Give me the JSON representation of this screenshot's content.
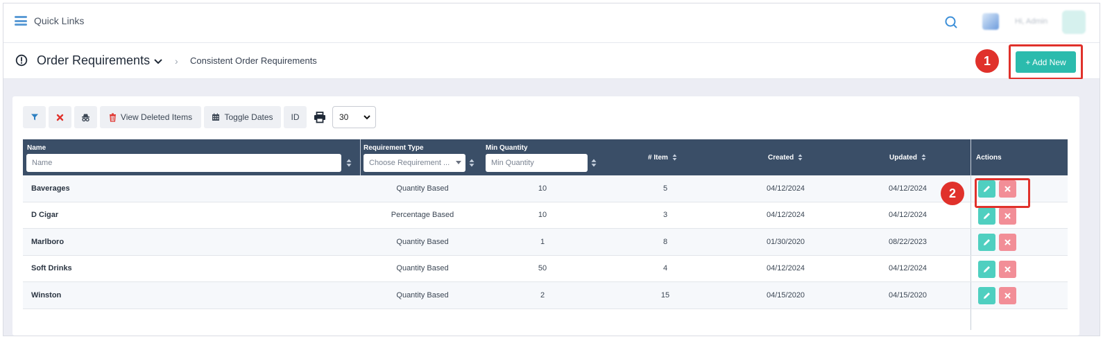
{
  "topbar": {
    "quick_links": "Quick Links",
    "user_label": "Hi, Admin"
  },
  "header": {
    "title": "Order Requirements",
    "breadcrumb_current": "Consistent Order Requirements",
    "add_new_label": "+ Add New",
    "marker_1": "1",
    "marker_2": "2"
  },
  "toolbar": {
    "view_deleted_label": "View Deleted Items",
    "toggle_dates_label": "Toggle Dates",
    "id_label": "ID",
    "page_size": "30"
  },
  "table": {
    "headers": {
      "name": "Name",
      "requirement_type": "Requirement Type",
      "min_quantity": "Min Quantity",
      "item_count": "# Item",
      "created": "Created",
      "updated": "Updated",
      "actions": "Actions"
    },
    "filters": {
      "name_placeholder": "Name",
      "requirement_type_placeholder": "Choose Requirement ...",
      "min_quantity_placeholder": "Min Quantity"
    },
    "rows": [
      {
        "name": "Baverages",
        "type": "Quantity Based",
        "min_qty": "10",
        "items": "5",
        "created": "04/12/2024",
        "updated": "04/12/2024"
      },
      {
        "name": "D Cigar",
        "type": "Percentage Based",
        "min_qty": "10",
        "items": "3",
        "created": "04/12/2024",
        "updated": "04/12/2024"
      },
      {
        "name": "Marlboro",
        "type": "Quantity Based",
        "min_qty": "1",
        "items": "8",
        "created": "01/30/2020",
        "updated": "08/22/2023"
      },
      {
        "name": "Soft Drinks",
        "type": "Quantity Based",
        "min_qty": "50",
        "items": "4",
        "created": "04/12/2024",
        "updated": "04/12/2024"
      },
      {
        "name": "Winston",
        "type": "Quantity Based",
        "min_qty": "2",
        "items": "15",
        "created": "04/15/2020",
        "updated": "04/15/2020"
      }
    ]
  },
  "colors": {
    "accent": "#2bbbad",
    "header_bg": "#3a4e67",
    "marker": "#e0312b",
    "delete": "#f28e97"
  },
  "icons": {
    "menu": "hamburger-icon",
    "search": "search-icon",
    "alert": "alert-circle-icon",
    "filter": "filter-icon",
    "clear": "x-icon",
    "incognito": "spy-icon",
    "trash": "trash-icon",
    "calendar": "calendar-icon",
    "print": "print-icon",
    "edit": "pencil-icon",
    "delete": "close-icon"
  }
}
